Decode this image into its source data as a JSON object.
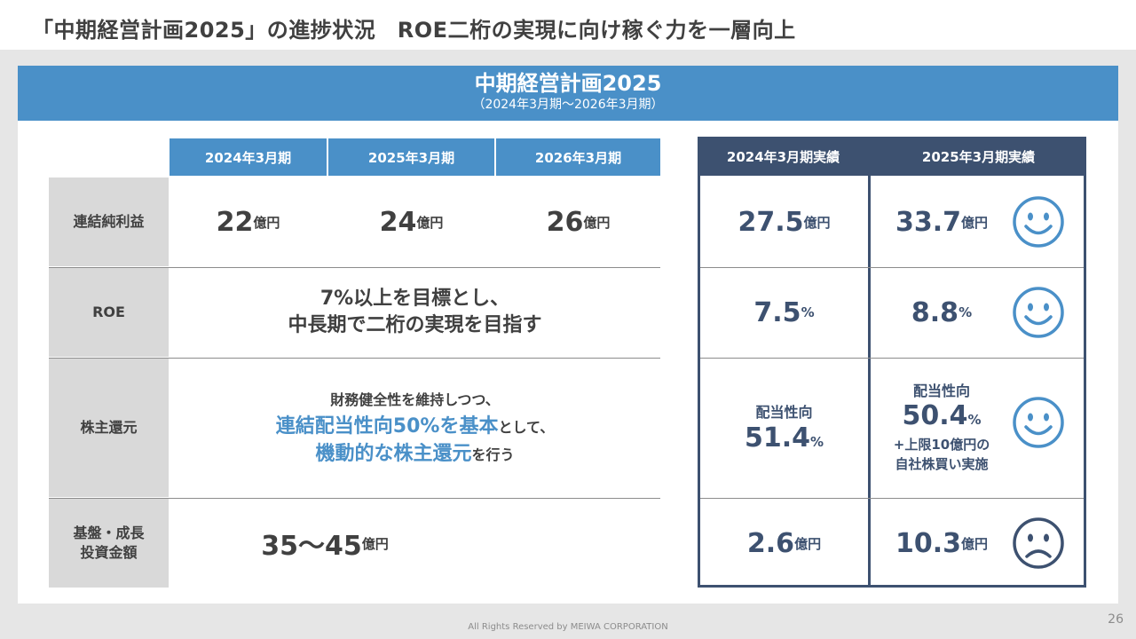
{
  "slide": {
    "title": "「中期経営計画2025」の進捗状況　ROE二桁の実現に向け稼ぐ力を一層向上",
    "page_number": "26",
    "footer": "All Rights Reserved by MEIWA CORPORATION"
  },
  "plan": {
    "title": "中期経営計画2025",
    "subtitle": "（2024年3月期〜2026年3月期）",
    "years": [
      "2024年3月期",
      "2025年3月期",
      "2026年3月期"
    ]
  },
  "rows": {
    "net_income": {
      "label": "連結純利益",
      "plan_values": [
        "22",
        "24",
        "26"
      ],
      "unit": "億円"
    },
    "roe": {
      "label": "ROE",
      "plan_line1": "7%以上を目標とし、",
      "plan_line2": "中長期で二桁の実現を目指す"
    },
    "shareholder": {
      "label": "株主還元",
      "plan_line1": "財務健全性を維持しつつ、",
      "plan_line2_hl": "連結配当性向50%を基本",
      "plan_line2_rest": "として、",
      "plan_line3_hl": "機動的な株主還元",
      "plan_line3_rest": "を行う"
    },
    "investment": {
      "label_line1": "基盤・成長",
      "label_line2": "投資金額",
      "plan_value": "35〜45",
      "unit": "億円"
    }
  },
  "results": {
    "headers": [
      "2024年3月期実績",
      "2025年3月期実績"
    ],
    "net_income": [
      {
        "value": "27.5",
        "unit": "億円"
      },
      {
        "value": "33.7",
        "unit": "億円",
        "face": "smile"
      }
    ],
    "roe": [
      {
        "value": "7.5",
        "unit": "%"
      },
      {
        "value": "8.8",
        "unit": "%",
        "face": "smile"
      }
    ],
    "shareholder": [
      {
        "label": "配当性向",
        "value": "51.4",
        "unit": "%"
      },
      {
        "label": "配当性向",
        "value": "50.4",
        "unit": "%",
        "note_line1": "+上限10億円の",
        "note_line2": "自社株買い実施",
        "face": "smile"
      }
    ],
    "investment": [
      {
        "value": "2.6",
        "unit": "億円"
      },
      {
        "value": "10.3",
        "unit": "億円",
        "face": "sad"
      }
    ]
  },
  "colors": {
    "plan_blue": "#4a90c8",
    "result_navy": "#3d5170",
    "label_gray": "#d9d9d9",
    "face_blue": "#4a90c8"
  }
}
